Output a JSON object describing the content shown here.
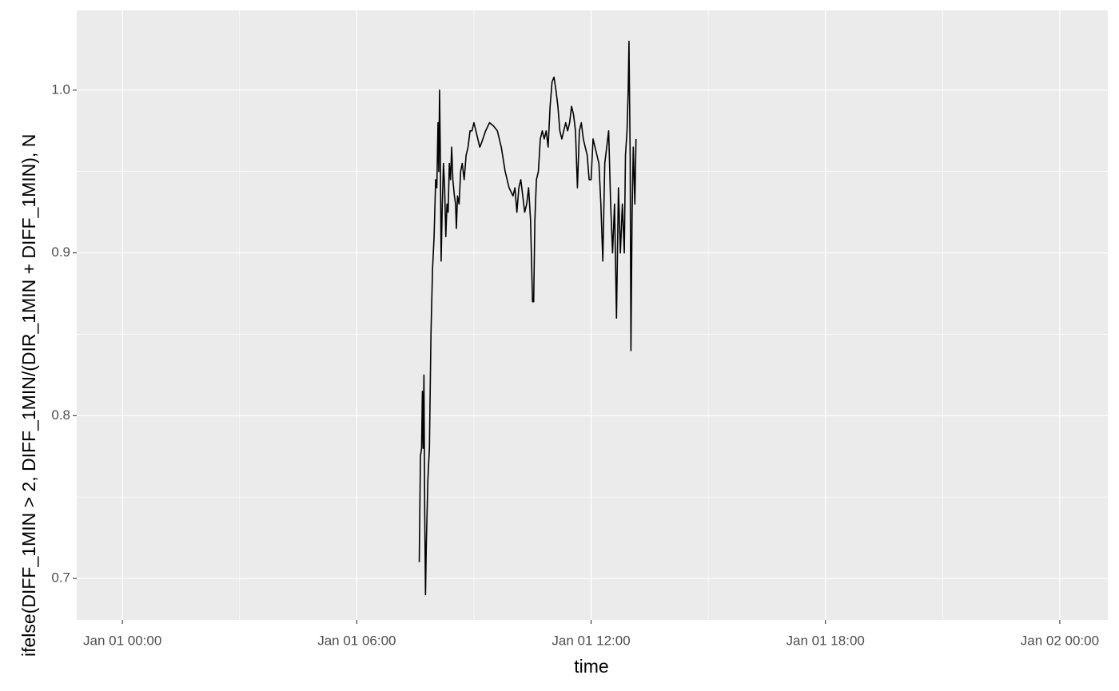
{
  "chart_data": {
    "type": "line",
    "x_label": "time",
    "y_label": "ifelse(DIFF_1MIN > 2, DIFF_1MIN/(DIR_1MIN + DIFF_1MIN), N",
    "xlim": [
      -1.17,
      25.23
    ],
    "ylim": [
      0.6745,
      1.049
    ],
    "xticks": [
      {
        "value": 0,
        "label": "Jan 01 00:00"
      },
      {
        "value": 6,
        "label": "Jan 01 06:00"
      },
      {
        "value": 12,
        "label": "Jan 01 12:00"
      },
      {
        "value": 18,
        "label": "Jan 01 18:00"
      },
      {
        "value": 24,
        "label": "Jan 02 00:00"
      }
    ],
    "yticks": [
      0.7,
      0.8,
      0.9,
      {
        "value": 1,
        "label": "1.0"
      }
    ],
    "minor_xticks": [
      3,
      9,
      15,
      21
    ],
    "minor_yticks": [
      0.75,
      0.85,
      0.95
    ],
    "grid": true,
    "series": [
      {
        "color": "#000000",
        "x": [
          7.6,
          7.63,
          7.66,
          7.68,
          7.7,
          7.72,
          7.74,
          7.76,
          7.78,
          7.82,
          7.86,
          7.9,
          7.94,
          7.98,
          8.02,
          8.05,
          8.08,
          8.1,
          8.12,
          8.14,
          8.16,
          8.19,
          8.22,
          8.25,
          8.28,
          8.31,
          8.34,
          8.37,
          8.4,
          8.43,
          8.46,
          8.5,
          8.53,
          8.55,
          8.58,
          8.62,
          8.66,
          8.7,
          8.75,
          8.8,
          8.85,
          8.9,
          8.95,
          9.0,
          9.05,
          9.1,
          9.15,
          9.2,
          9.3,
          9.4,
          9.5,
          9.6,
          9.7,
          9.8,
          9.9,
          10.0,
          10.05,
          10.1,
          10.15,
          10.2,
          10.25,
          10.3,
          10.35,
          10.4,
          10.45,
          10.5,
          10.53,
          10.56,
          10.6,
          10.65,
          10.7,
          10.75,
          10.8,
          10.85,
          10.9,
          10.95,
          11.0,
          11.05,
          11.1,
          11.15,
          11.2,
          11.25,
          11.3,
          11.35,
          11.4,
          11.45,
          11.5,
          11.55,
          11.6,
          11.65,
          11.7,
          11.75,
          11.8,
          11.85,
          11.9,
          11.95,
          12.0,
          12.05,
          12.1,
          12.15,
          12.2,
          12.25,
          12.3,
          12.35,
          12.4,
          12.45,
          12.5,
          12.55,
          12.6,
          12.65,
          12.7,
          12.75,
          12.8,
          12.85,
          12.88,
          12.92,
          12.95,
          12.97,
          13.0,
          13.02,
          13.05,
          13.08,
          13.12,
          13.15
        ],
        "values": [
          0.71,
          0.775,
          0.78,
          0.815,
          0.78,
          0.825,
          0.74,
          0.69,
          0.72,
          0.76,
          0.78,
          0.85,
          0.89,
          0.91,
          0.945,
          0.94,
          0.98,
          0.95,
          1.0,
          0.96,
          0.895,
          0.93,
          0.955,
          0.94,
          0.91,
          0.93,
          0.925,
          0.955,
          0.945,
          0.965,
          0.945,
          0.935,
          0.93,
          0.915,
          0.935,
          0.93,
          0.95,
          0.955,
          0.945,
          0.96,
          0.965,
          0.975,
          0.975,
          0.98,
          0.975,
          0.97,
          0.965,
          0.968,
          0.975,
          0.98,
          0.978,
          0.975,
          0.965,
          0.95,
          0.94,
          0.935,
          0.94,
          0.925,
          0.94,
          0.945,
          0.935,
          0.925,
          0.93,
          0.94,
          0.92,
          0.87,
          0.87,
          0.92,
          0.945,
          0.95,
          0.97,
          0.975,
          0.97,
          0.975,
          0.965,
          0.99,
          1.005,
          1.008,
          1.0,
          0.99,
          0.975,
          0.97,
          0.975,
          0.98,
          0.975,
          0.98,
          0.99,
          0.985,
          0.975,
          0.94,
          0.975,
          0.98,
          0.97,
          0.965,
          0.96,
          0.945,
          0.945,
          0.97,
          0.965,
          0.96,
          0.955,
          0.93,
          0.895,
          0.955,
          0.965,
          0.975,
          0.93,
          0.9,
          0.93,
          0.86,
          0.94,
          0.9,
          0.93,
          0.9,
          0.96,
          0.975,
          1.0,
          1.03,
          0.96,
          0.84,
          0.925,
          0.965,
          0.93,
          0.97
        ]
      }
    ]
  }
}
